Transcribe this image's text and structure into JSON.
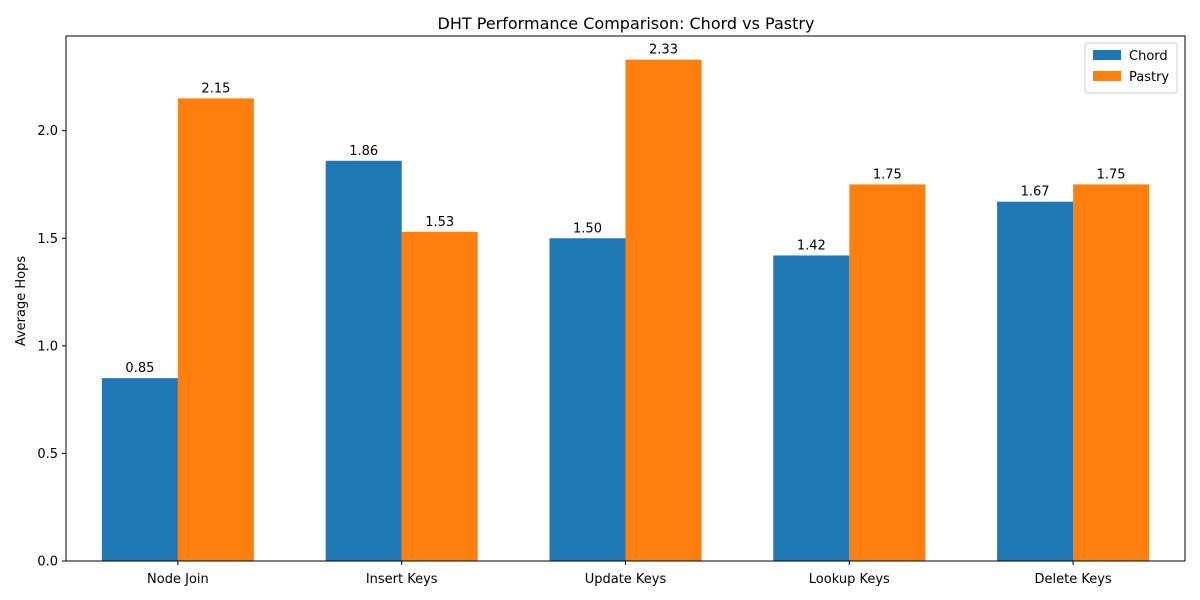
{
  "chart_data": {
    "type": "bar",
    "title": "DHT Performance Comparison: Chord vs Pastry",
    "xlabel": "",
    "ylabel": "Average Hops",
    "categories": [
      "Node Join",
      "Insert Keys",
      "Update Keys",
      "Lookup Keys",
      "Delete Keys"
    ],
    "series": [
      {
        "name": "Chord",
        "color": "#1f77b4",
        "values": [
          0.85,
          1.86,
          1.5,
          1.42,
          1.67
        ]
      },
      {
        "name": "Pastry",
        "color": "#ff7f0e",
        "values": [
          2.15,
          1.53,
          2.33,
          1.75,
          1.75
        ]
      }
    ],
    "ylim": [
      0,
      2.44
    ],
    "yticks": [
      0.0,
      0.5,
      1.0,
      1.5,
      2.0
    ],
    "ytick_labels": [
      "0.0",
      "0.5",
      "1.0",
      "1.5",
      "2.0"
    ],
    "data_labels": [
      [
        "0.85",
        "1.86",
        "1.50",
        "1.42",
        "1.67"
      ],
      [
        "2.15",
        "1.53",
        "2.33",
        "1.75",
        "1.75"
      ]
    ],
    "legend_position": "top-right",
    "grid": false
  }
}
